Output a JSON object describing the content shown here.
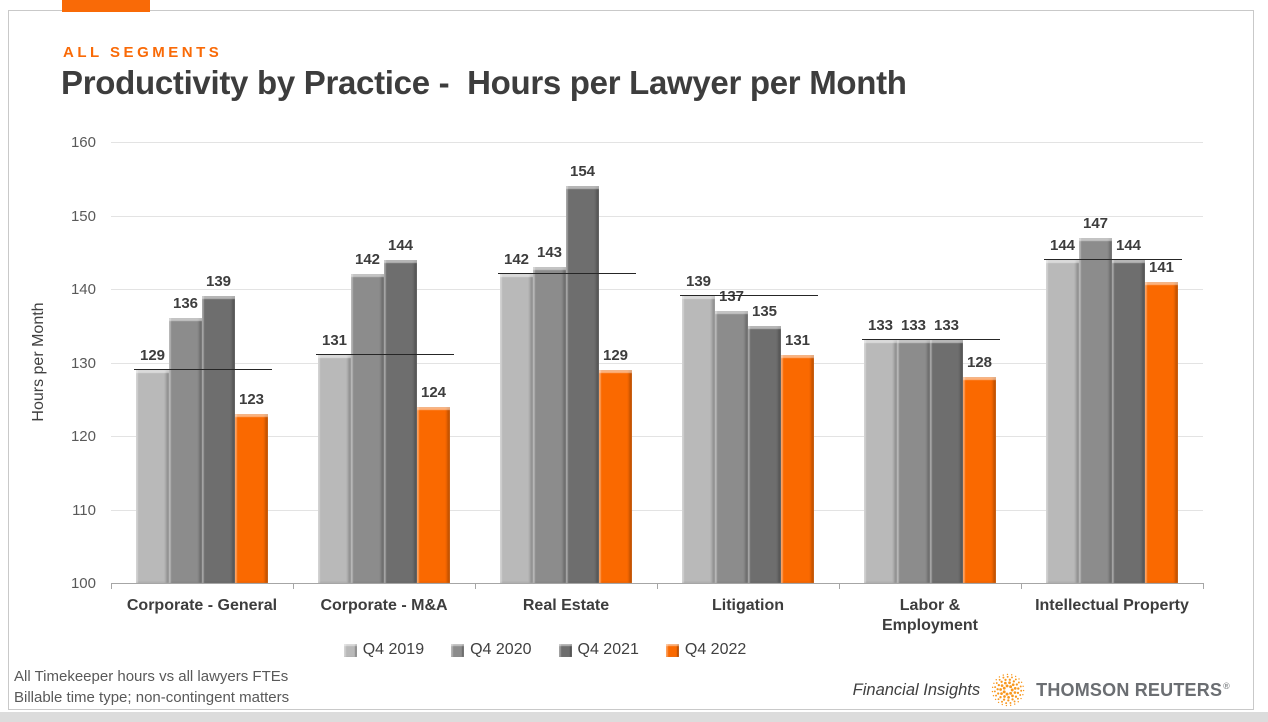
{
  "header": {
    "eyebrow": "ALL SEGMENTS",
    "title": "Productivity by Practice -  Hours per Lawyer per Month",
    "accent_color": "#F96A07"
  },
  "chart_data": {
    "type": "bar",
    "title": "Productivity by Practice - Hours per Lawyer per Month",
    "xlabel": "",
    "ylabel": "Hours per Month",
    "ylim": [
      100,
      160
    ],
    "ytick_step": 10,
    "grid": true,
    "legend_position": "bottom",
    "categories": [
      "Corporate - General",
      "Corporate - M&A",
      "Real Estate",
      "Litigation",
      "Labor &\nEmployment",
      "Intellectual Property"
    ],
    "series": [
      {
        "name": "Q4 2019",
        "color": "#B9B9B9",
        "values": [
          129,
          131,
          142,
          139,
          133,
          144
        ]
      },
      {
        "name": "Q4 2020",
        "color": "#8C8C8C",
        "values": [
          136,
          142,
          143,
          137,
          133,
          147
        ]
      },
      {
        "name": "Q4 2021",
        "color": "#6E6E6E",
        "values": [
          139,
          144,
          154,
          135,
          133,
          144
        ]
      },
      {
        "name": "Q4 2022",
        "color": "#FA6900",
        "values": [
          123,
          124,
          129,
          131,
          128,
          141
        ]
      }
    ],
    "benchmark_lines": {
      "description": "horizontal reference line per category at the Q4 2019 level",
      "values": [
        129,
        131,
        142,
        139,
        133,
        144
      ],
      "color": "#262626"
    }
  },
  "footnotes": {
    "line1": "All Timekeeper hours vs all lawyers FTEs",
    "line2": "Billable time type; non-contingent matters"
  },
  "branding": {
    "product": "Financial Insights",
    "company": "THOMSON REUTERS",
    "registered_mark": "®",
    "logo": "thomson-reuters-kinesis-icon",
    "logo_color": "#F8971D"
  }
}
